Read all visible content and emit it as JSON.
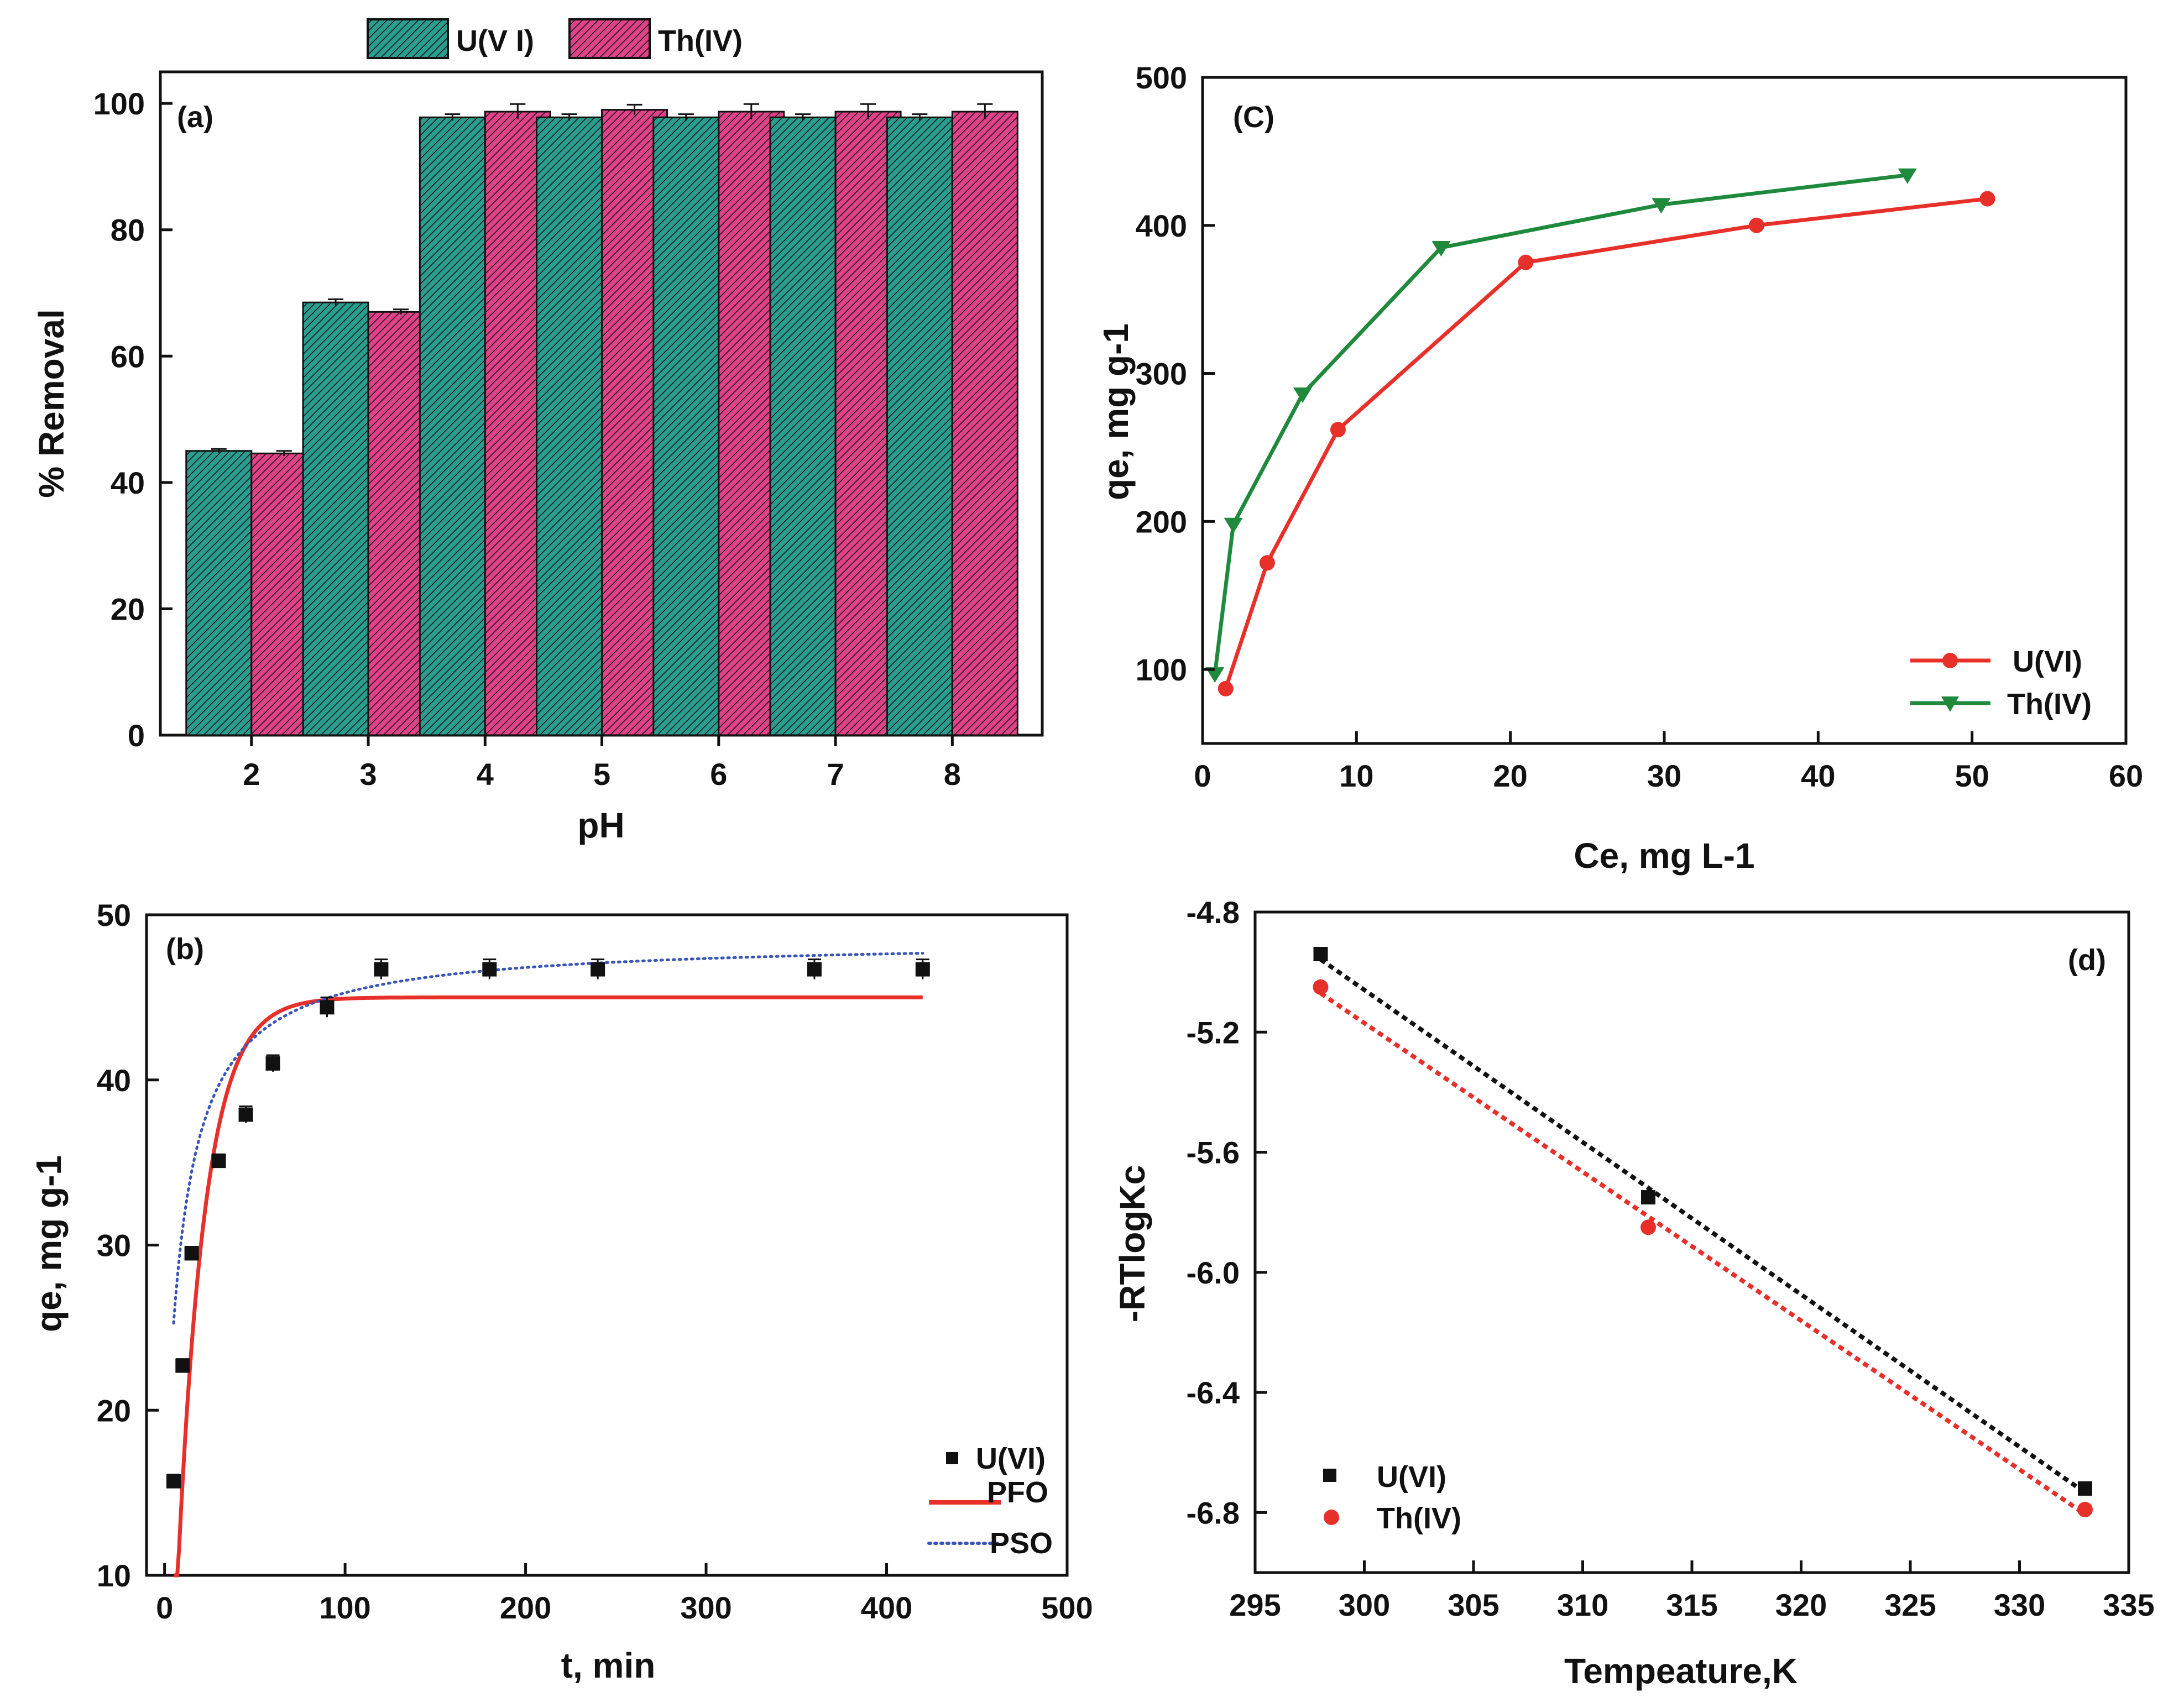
{
  "colors": {
    "teal": "#2a9d8f",
    "pink": "#e0428a",
    "red": "#e8302a",
    "green": "#1f8a3c",
    "black": "#111111",
    "blue": "#3a55b8"
  },
  "chart_data": [
    {
      "id": "a",
      "type": "bar",
      "panel_label": "(a)",
      "xlabel": "pH",
      "ylabel": "% Removal",
      "categories": [
        "2",
        "3",
        "4",
        "5",
        "6",
        "7",
        "8"
      ],
      "ylim": [
        0,
        105
      ],
      "yticks": [
        0,
        20,
        40,
        60,
        80,
        100
      ],
      "legend_position": "top-center",
      "series": [
        {
          "name": "U(V I)",
          "color": "#2a9d8f",
          "values": [
            45,
            68.5,
            97.8,
            97.8,
            97.8,
            97.8,
            97.8
          ],
          "errors": [
            0.3,
            0.5,
            0.5,
            0.5,
            0.5,
            0.5,
            0.5
          ]
        },
        {
          "name": "Th(IV)",
          "color": "#e0428a",
          "values": [
            44.6,
            67,
            98.7,
            99,
            98.7,
            98.7,
            98.7
          ],
          "errors": [
            0.4,
            0.4,
            1.2,
            0.8,
            1.2,
            1.2,
            1.2
          ]
        }
      ]
    },
    {
      "id": "c",
      "type": "line",
      "panel_label": "(C)",
      "xlabel": "Ce, mg L-1",
      "ylabel": "qe, mg g-1",
      "xlim": [
        0,
        60
      ],
      "ylim": [
        50,
        500
      ],
      "xticks": [
        0,
        10,
        20,
        30,
        40,
        50,
        60
      ],
      "yticks": [
        100,
        200,
        300,
        400,
        500
      ],
      "legend_position": "bottom-right",
      "series": [
        {
          "name": "U(VI)",
          "color": "#e8302a",
          "marker": "circle",
          "x": [
            1.5,
            4.2,
            8.8,
            21,
            36,
            51
          ],
          "y": [
            87,
            172,
            262,
            375,
            400,
            418
          ]
        },
        {
          "name": "Th(IV)",
          "color": "#1f8a3c",
          "marker": "triangle-down",
          "x": [
            0.8,
            2,
            6.5,
            15.5,
            29.8,
            45.8
          ],
          "y": [
            97,
            198,
            286,
            385,
            414,
            434
          ]
        }
      ]
    },
    {
      "id": "b",
      "type": "scatter",
      "panel_label": "(b)",
      "xlabel": "t, min",
      "ylabel": "qe, mg g-1",
      "xlim": [
        -10,
        500
      ],
      "ylim": [
        10,
        50
      ],
      "xticks": [
        0,
        100,
        200,
        300,
        400,
        500
      ],
      "yticks": [
        10,
        20,
        30,
        40,
        50
      ],
      "legend_position": "bottom-right",
      "series": [
        {
          "name": "U(VI)",
          "kind": "points",
          "color": "#111111",
          "x": [
            5,
            10,
            15,
            30,
            45,
            60,
            90,
            120,
            180,
            240,
            360,
            420
          ],
          "y": [
            15.7,
            22.7,
            29.5,
            35.1,
            37.9,
            41,
            44.4,
            46.7,
            46.7,
            46.7,
            46.7,
            46.7
          ],
          "errors": [
            0.4,
            0.4,
            0.4,
            0.4,
            0.5,
            0.5,
            0.6,
            0.6,
            0.6,
            0.6,
            0.6,
            0.6
          ]
        },
        {
          "name": "PFO",
          "kind": "curve",
          "color": "#e8302a",
          "dash": "solid",
          "model": "pfo",
          "qe": 45,
          "k": 0.066,
          "t0": 3.5,
          "tmin": 5,
          "tmax": 420
        },
        {
          "name": "PSO",
          "kind": "curve",
          "color": "#3a55b8",
          "dash": "dotted",
          "model": "pso",
          "qe": 48.5,
          "k": 0.002,
          "t0": 0,
          "offset": 14,
          "tmin": 5,
          "tmax": 420
        }
      ]
    },
    {
      "id": "d",
      "type": "scatter",
      "panel_label": "(d)",
      "xlabel": "Tempeature,K",
      "ylabel": "-RTlogKc",
      "xlim": [
        295,
        335
      ],
      "ylim": [
        -7,
        -4.8
      ],
      "xticks": [
        295,
        300,
        305,
        310,
        315,
        320,
        325,
        330,
        335
      ],
      "yticks": [
        -4.8,
        -5.2,
        -5.6,
        -6.0,
        -6.4,
        -6.8
      ],
      "legend_position": "bottom-left",
      "series": [
        {
          "name": "U(VI)",
          "color": "#111111",
          "marker": "square",
          "x": [
            298,
            313,
            333
          ],
          "y": [
            -4.94,
            -5.75,
            -6.72
          ]
        },
        {
          "name": "Th(IV)",
          "color": "#e8302a",
          "marker": "circle",
          "x": [
            298,
            313,
            333
          ],
          "y": [
            -5.05,
            -5.85,
            -6.79
          ]
        }
      ]
    }
  ]
}
